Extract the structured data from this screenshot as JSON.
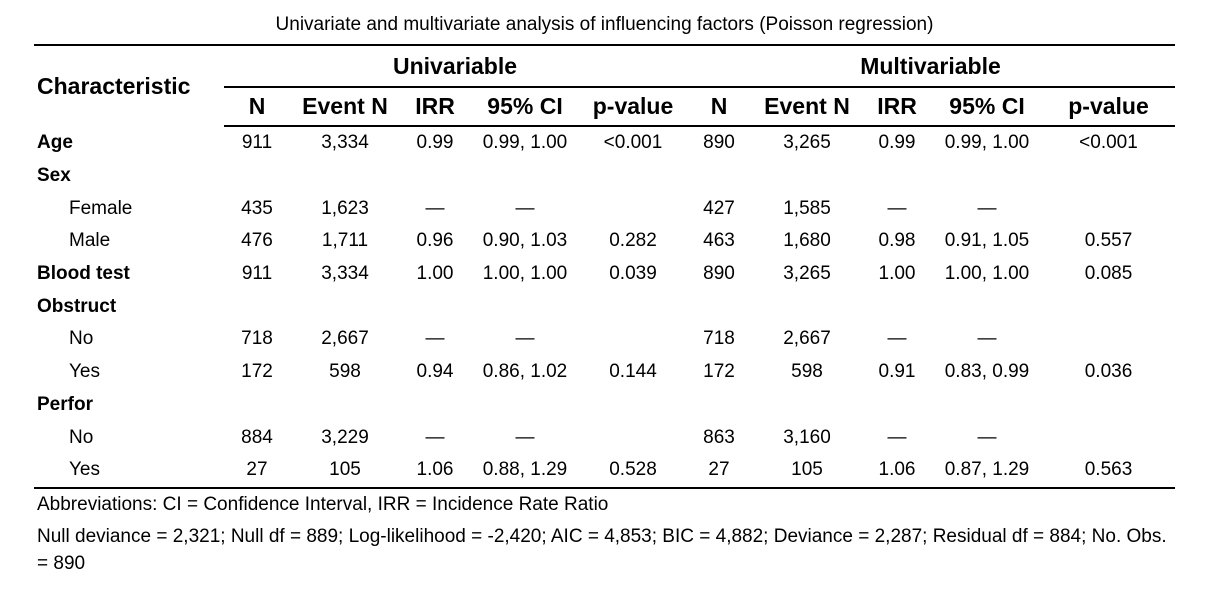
{
  "caption": "Univariate and multivariate analysis of influencing factors (Poisson regression)",
  "header": {
    "characteristic": "Characteristic",
    "groups": [
      "Univariable",
      "Multivariable"
    ],
    "columns": [
      "N",
      "Event N",
      "IRR",
      "95% CI",
      "p-value",
      "N",
      "Event N",
      "IRR",
      "95% CI",
      "p-value"
    ]
  },
  "rows": [
    {
      "label": "Age",
      "type": "variable",
      "cells": [
        "911",
        "3,334",
        "0.99",
        "0.99, 1.00",
        "<0.001",
        "890",
        "3,265",
        "0.99",
        "0.99, 1.00",
        "<0.001"
      ]
    },
    {
      "label": "Sex",
      "type": "variable",
      "cells": [
        "",
        "",
        "",
        "",
        "",
        "",
        "",
        "",
        "",
        ""
      ]
    },
    {
      "label": "Female",
      "type": "level",
      "cells": [
        "435",
        "1,623",
        "—",
        "—",
        "",
        "427",
        "1,585",
        "—",
        "—",
        ""
      ]
    },
    {
      "label": "Male",
      "type": "level",
      "cells": [
        "476",
        "1,711",
        "0.96",
        "0.90, 1.03",
        "0.282",
        "463",
        "1,680",
        "0.98",
        "0.91, 1.05",
        "0.557"
      ]
    },
    {
      "label": "Blood test",
      "type": "variable",
      "cells": [
        "911",
        "3,334",
        "1.00",
        "1.00, 1.00",
        "0.039",
        "890",
        "3,265",
        "1.00",
        "1.00, 1.00",
        "0.085"
      ]
    },
    {
      "label": "Obstruct",
      "type": "variable",
      "cells": [
        "",
        "",
        "",
        "",
        "",
        "",
        "",
        "",
        "",
        ""
      ]
    },
    {
      "label": "No",
      "type": "level",
      "cells": [
        "718",
        "2,667",
        "—",
        "—",
        "",
        "718",
        "2,667",
        "—",
        "—",
        ""
      ]
    },
    {
      "label": "Yes",
      "type": "level",
      "cells": [
        "172",
        "598",
        "0.94",
        "0.86, 1.02",
        "0.144",
        "172",
        "598",
        "0.91",
        "0.83, 0.99",
        "0.036"
      ]
    },
    {
      "label": "Perfor",
      "type": "variable",
      "cells": [
        "",
        "",
        "",
        "",
        "",
        "",
        "",
        "",
        "",
        ""
      ]
    },
    {
      "label": "No",
      "type": "level",
      "cells": [
        "884",
        "3,229",
        "—",
        "—",
        "",
        "863",
        "3,160",
        "—",
        "—",
        ""
      ]
    },
    {
      "label": "Yes",
      "type": "level",
      "cells": [
        "27",
        "105",
        "1.06",
        "0.88, 1.29",
        "0.528",
        "27",
        "105",
        "1.06",
        "0.87, 1.29",
        "0.563"
      ]
    }
  ],
  "footnotes": {
    "abbreviations": "Abbreviations: CI = Confidence Interval, IRR = Incidence Rate Ratio",
    "model_stats": "Null deviance = 2,321; Null df = 889; Log-likelihood = -2,420; AIC = 4,853; BIC = 4,882; Deviance = 2,287; Residual df = 884; No. Obs. = 890"
  }
}
